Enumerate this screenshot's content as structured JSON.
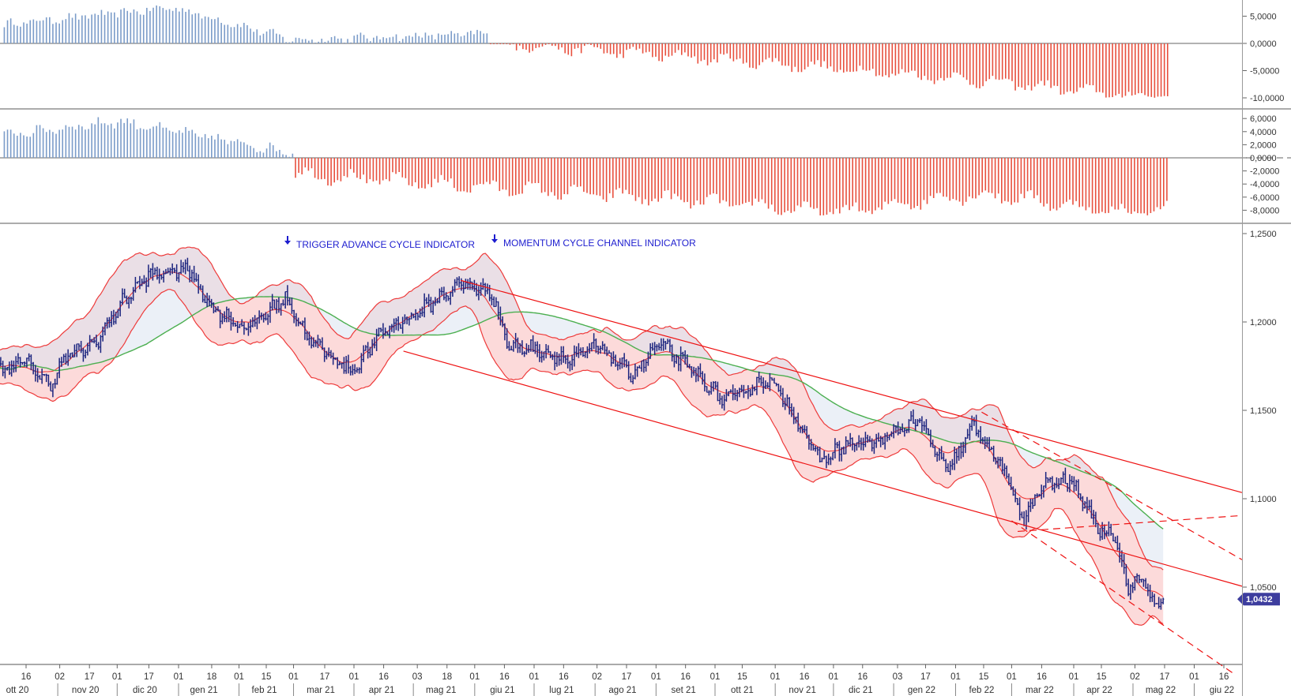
{
  "chart_data": [
    {
      "type": "bar",
      "panel": "oscillator-1",
      "y_ticks": [
        "5,0000",
        "0,0000",
        "-5,0000",
        "-10,0000"
      ],
      "y_values": [
        5,
        0,
        -5,
        -10
      ],
      "ylim": [
        -10.5,
        7.2
      ],
      "positive_color": "#7b9cc9",
      "negative_color": "#e8503e",
      "series": [
        {
          "segment": "positive",
          "from": "2020-10-05",
          "to": "2021-06-08",
          "start": 3.5,
          "peak": 6.6,
          "trough": 0.6,
          "end": 1.8
        },
        {
          "segment": "negative",
          "from": "2021-06-09",
          "to": "2022-05-19",
          "start": 0,
          "trough": -10.0,
          "end": -9.9
        }
      ]
    },
    {
      "type": "bar",
      "panel": "oscillator-2",
      "y_ticks": [
        "6,0000",
        "4,0000",
        "2,0000",
        "0,0000",
        "-2,0000",
        "-4,0000",
        "-6,0000",
        "-8,0000"
      ],
      "y_values": [
        6,
        4,
        2,
        0,
        -2,
        -4,
        -6,
        -8
      ],
      "ylim": [
        -9,
        7
      ],
      "positive_color": "#7b9cc9",
      "negative_color": "#e8503e",
      "series": [
        {
          "segment": "positive",
          "from": "2020-10-05",
          "to": "2021-03-01",
          "start": 3.5,
          "peak": 5.6,
          "end": 0.8
        },
        {
          "segment": "negative",
          "from": "2021-03-02",
          "to": "2022-05-19",
          "start": -1.5,
          "trough": -8.8,
          "end": -7.2
        }
      ]
    },
    {
      "type": "candlestick",
      "panel": "price",
      "y_ticks": [
        "1,2500",
        "1,2000",
        "1,1500",
        "1,1000",
        "1,0500"
      ],
      "y_values": [
        1.25,
        1.2,
        1.15,
        1.1,
        1.05
      ],
      "ylim": [
        1.005,
        1.255
      ],
      "last_price_label": "1,0432",
      "last_price": 1.0432,
      "candle_color": "#1a237e",
      "price_path": [
        [
          "2020-10-01",
          1.172
        ],
        [
          "2020-10-16",
          1.178
        ],
        [
          "2020-10-28",
          1.164
        ],
        [
          "2020-11-05",
          1.18
        ],
        [
          "2020-11-20",
          1.188
        ],
        [
          "2020-12-04",
          1.212
        ],
        [
          "2020-12-17",
          1.226
        ],
        [
          "2021-01-06",
          1.23
        ],
        [
          "2021-01-18",
          1.208
        ],
        [
          "2021-02-05",
          1.196
        ],
        [
          "2021-02-25",
          1.214
        ],
        [
          "2021-03-09",
          1.19
        ],
        [
          "2021-03-31",
          1.172
        ],
        [
          "2021-04-16",
          1.195
        ],
        [
          "2021-05-03",
          1.205
        ],
        [
          "2021-05-25",
          1.222
        ],
        [
          "2021-06-10",
          1.216
        ],
        [
          "2021-06-18",
          1.186
        ],
        [
          "2021-07-01",
          1.185
        ],
        [
          "2021-07-20",
          1.178
        ],
        [
          "2021-08-02",
          1.187
        ],
        [
          "2021-08-20",
          1.17
        ],
        [
          "2021-09-03",
          1.188
        ],
        [
          "2021-09-20",
          1.172
        ],
        [
          "2021-10-06",
          1.155
        ],
        [
          "2021-10-28",
          1.168
        ],
        [
          "2021-11-10",
          1.15
        ],
        [
          "2021-11-24",
          1.121
        ],
        [
          "2021-12-08",
          1.131
        ],
        [
          "2021-12-24",
          1.132
        ],
        [
          "2022-01-13",
          1.145
        ],
        [
          "2022-01-28",
          1.115
        ],
        [
          "2022-02-10",
          1.142
        ],
        [
          "2022-02-24",
          1.118
        ],
        [
          "2022-03-07",
          1.088
        ],
        [
          "2022-03-17",
          1.108
        ],
        [
          "2022-03-31",
          1.11
        ],
        [
          "2022-04-14",
          1.082
        ],
        [
          "2022-04-22",
          1.08
        ],
        [
          "2022-04-28",
          1.05
        ],
        [
          "2022-05-06",
          1.055
        ],
        [
          "2022-05-13",
          1.038
        ],
        [
          "2022-05-17",
          1.0432
        ]
      ],
      "indicators": {
        "moving_average_color": "#4caf50",
        "band_color": "#ee3b3b",
        "channel_color": "#ee1111"
      },
      "annotations": [
        "TRIGGER ADVANCE CYCLE INDICATOR",
        "MOMENTUM CYCLE CHANNEL INDICATOR"
      ],
      "x_axis": {
        "ticks": [
          {
            "day": "16",
            "date": "2020-10-16"
          },
          {
            "day": "02",
            "date": "2020-11-02"
          },
          {
            "day": "17",
            "date": "2020-11-17"
          },
          {
            "day": "01",
            "date": "2020-12-01"
          },
          {
            "day": "17",
            "date": "2020-12-17"
          },
          {
            "day": "01",
            "date": "2021-01-01"
          },
          {
            "day": "18",
            "date": "2021-01-18"
          },
          {
            "day": "01",
            "date": "2021-02-01"
          },
          {
            "day": "15",
            "date": "2021-02-15"
          },
          {
            "day": "01",
            "date": "2021-03-01"
          },
          {
            "day": "17",
            "date": "2021-03-17"
          },
          {
            "day": "01",
            "date": "2021-04-01"
          },
          {
            "day": "16",
            "date": "2021-04-16"
          },
          {
            "day": "03",
            "date": "2021-05-03"
          },
          {
            "day": "18",
            "date": "2021-05-18"
          },
          {
            "day": "01",
            "date": "2021-06-01"
          },
          {
            "day": "16",
            "date": "2021-06-16"
          },
          {
            "day": "01",
            "date": "2021-07-01"
          },
          {
            "day": "16",
            "date": "2021-07-16"
          },
          {
            "day": "02",
            "date": "2021-08-02"
          },
          {
            "day": "17",
            "date": "2021-08-17"
          },
          {
            "day": "01",
            "date": "2021-09-01"
          },
          {
            "day": "16",
            "date": "2021-09-16"
          },
          {
            "day": "01",
            "date": "2021-10-01"
          },
          {
            "day": "15",
            "date": "2021-10-15"
          },
          {
            "day": "01",
            "date": "2021-11-01"
          },
          {
            "day": "16",
            "date": "2021-11-16"
          },
          {
            "day": "01",
            "date": "2021-12-01"
          },
          {
            "day": "16",
            "date": "2021-12-16"
          },
          {
            "day": "03",
            "date": "2022-01-03"
          },
          {
            "day": "17",
            "date": "2022-01-17"
          },
          {
            "day": "01",
            "date": "2022-02-01"
          },
          {
            "day": "15",
            "date": "2022-02-15"
          },
          {
            "day": "01",
            "date": "2022-03-01"
          },
          {
            "day": "16",
            "date": "2022-03-16"
          },
          {
            "day": "01",
            "date": "2022-04-01"
          },
          {
            "day": "15",
            "date": "2022-04-15"
          },
          {
            "day": "02",
            "date": "2022-05-02"
          },
          {
            "day": "17",
            "date": "2022-05-17"
          },
          {
            "day": "01",
            "date": "2022-06-01"
          },
          {
            "day": "16",
            "date": "2022-06-16"
          }
        ],
        "months": [
          {
            "label": "ott 20",
            "date": "2020-10-10"
          },
          {
            "label": "nov 20",
            "date": "2020-11-15"
          },
          {
            "label": "dic 20",
            "date": "2020-12-15"
          },
          {
            "label": "gen 21",
            "date": "2021-01-14"
          },
          {
            "label": "feb 21",
            "date": "2021-02-14"
          },
          {
            "label": "mar 21",
            "date": "2021-03-15"
          },
          {
            "label": "apr 21",
            "date": "2021-04-15"
          },
          {
            "label": "mag 21",
            "date": "2021-05-15"
          },
          {
            "label": "giu 21",
            "date": "2021-06-15"
          },
          {
            "label": "lug 21",
            "date": "2021-07-15"
          },
          {
            "label": "ago 21",
            "date": "2021-08-15"
          },
          {
            "label": "set 21",
            "date": "2021-09-15"
          },
          {
            "label": "ott 21",
            "date": "2021-10-15"
          },
          {
            "label": "nov 21",
            "date": "2021-11-15"
          },
          {
            "label": "dic 21",
            "date": "2021-12-15"
          },
          {
            "label": "gen 22",
            "date": "2022-01-15"
          },
          {
            "label": "feb 22",
            "date": "2022-02-14"
          },
          {
            "label": "mar 22",
            "date": "2022-03-15"
          },
          {
            "label": "apr 22",
            "date": "2022-04-14"
          },
          {
            "label": "mag 22",
            "date": "2022-05-15"
          },
          {
            "label": "giu 22",
            "date": "2022-06-15"
          }
        ]
      }
    }
  ]
}
